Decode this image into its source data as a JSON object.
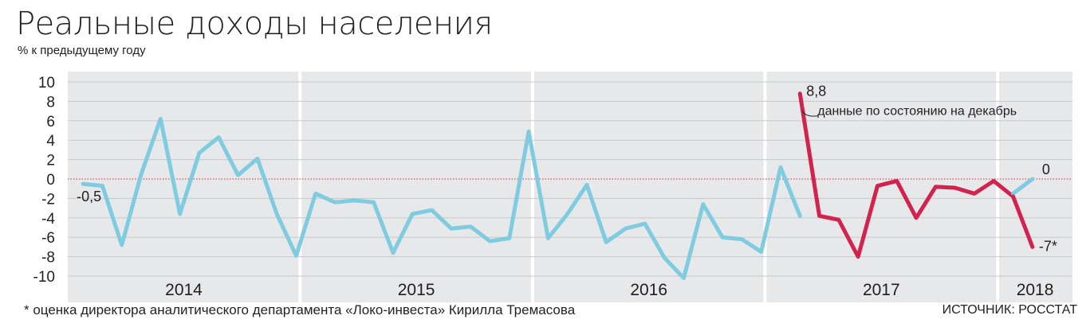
{
  "title": "Реальные доходы населения",
  "subtitle": "% к предыдущему году",
  "footnote": "* оценка директора аналитического департамента «Локо-инвеста» Кирилла Тремасова",
  "source": "ИСТОЧНИК: РОССТАТ",
  "colors": {
    "panel_bg": "#e7e8e9",
    "grid": "#c8c9cb",
    "zero_line": "#d7263d",
    "series_main": "#7fcce0",
    "series_highlight": "#d2234e",
    "text": "#231f20"
  },
  "chart_data": {
    "type": "line",
    "ylim": [
      -10,
      10
    ],
    "yticks": [
      10,
      8,
      6,
      4,
      2,
      0,
      -2,
      -4,
      -6,
      -8,
      -10
    ],
    "grid": true,
    "years": [
      {
        "label": "2014",
        "start": 0,
        "end": 12
      },
      {
        "label": "2015",
        "start": 12,
        "end": 24
      },
      {
        "label": "2016",
        "start": 24,
        "end": 36
      },
      {
        "label": "2017",
        "start": 36,
        "end": 48
      },
      {
        "label": "2018",
        "start": 48,
        "end": 51
      }
    ],
    "series": [
      {
        "role": "main",
        "x": [
          0.5,
          1.5,
          2.5,
          3.5,
          4.5,
          5.5,
          6.5,
          7.5,
          8.5,
          9.5,
          10.5,
          11.5,
          12.5,
          13.5,
          14.5,
          15.5,
          16.5,
          17.5,
          18.5,
          19.5,
          20.5,
          21.5,
          22.5,
          23.5,
          24.5,
          25.5,
          26.5,
          27.5,
          28.5,
          29.5,
          30.5,
          31.5,
          32.5,
          33.5,
          34.5,
          35.5,
          36.5,
          37.5
        ],
        "values": [
          -0.5,
          -0.7,
          -6.8,
          0.5,
          6.2,
          -3.6,
          2.7,
          4.3,
          0.4,
          2.1,
          -3.6,
          -7.9,
          -1.5,
          -2.4,
          -2.2,
          -2.4,
          -7.6,
          -3.6,
          -3.2,
          -5.1,
          -4.9,
          -6.4,
          -6.1,
          4.9,
          -6.1,
          -3.6,
          -0.6,
          -6.5,
          -5.1,
          -4.6,
          -8.1,
          -10.2,
          -2.6,
          -6.0,
          -6.2,
          -7.5,
          1.2,
          -3.8
        ],
        "labels": [
          {
            "index": 0,
            "text": "-0,5"
          }
        ]
      },
      {
        "role": "highlight",
        "name": "данные по состоянию на декабрь",
        "x": [
          37.5,
          38.5,
          39.5,
          40.5,
          41.5,
          42.5,
          43.5,
          44.5,
          45.5,
          46.5,
          47.5,
          48.5
        ],
        "values": [
          8.8,
          -3.8,
          -4.2,
          -8.0,
          -0.7,
          -0.2,
          -4.0,
          -0.8,
          -0.9,
          -1.5,
          -0.2,
          -1.8
        ],
        "labels": [
          {
            "index": 0,
            "text": "8,8"
          }
        ]
      },
      {
        "role": "main",
        "x": [
          48.5,
          49.5
        ],
        "values": [
          -1.5,
          0.0
        ],
        "labels": [
          {
            "index": 1,
            "text": "0"
          }
        ]
      },
      {
        "role": "highlight",
        "x": [
          48.5,
          49.5
        ],
        "values": [
          -1.8,
          -7.0
        ],
        "labels": [
          {
            "index": 1,
            "text": "-7*"
          }
        ]
      }
    ],
    "annotation": {
      "text": "данные по состоянию на декабрь"
    }
  }
}
